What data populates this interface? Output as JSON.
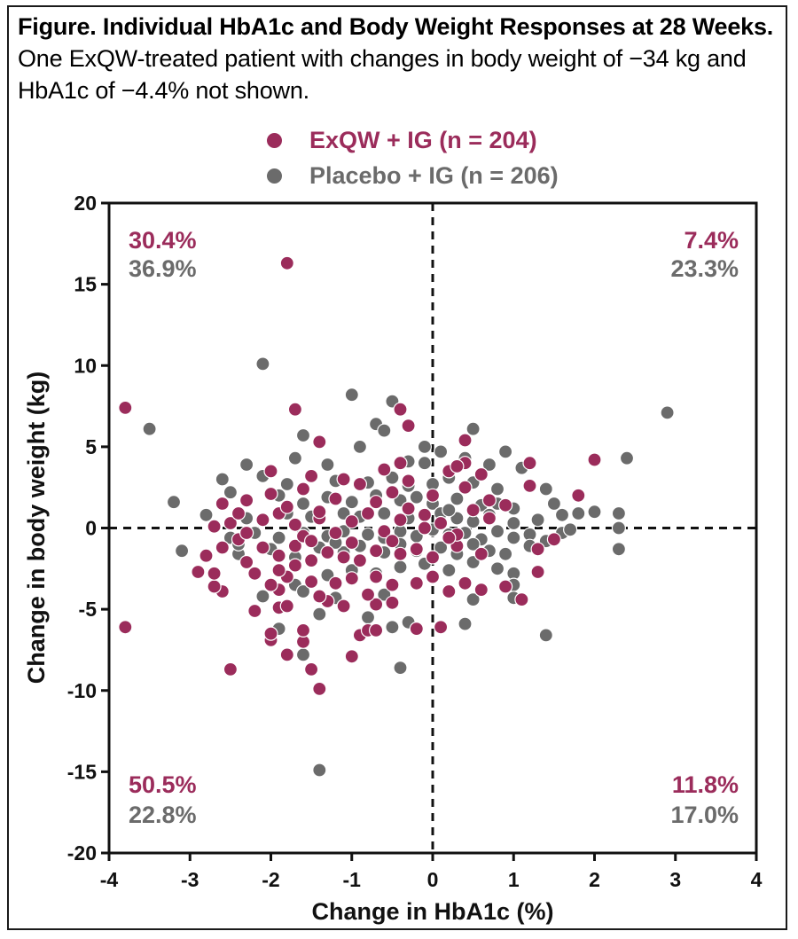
{
  "caption": {
    "title_bold": "Figure. Individual HbA1c and Body Weight Responses at 28 Weeks.",
    "title_rest": " One ExQW-treated patient with changes in body weight of −34 kg and HbA1c of −4.4% not shown."
  },
  "legend": [
    {
      "label": "ExQW + IG (n = 204)",
      "color": "#9b2c5b"
    },
    {
      "label": "Placebo + IG (n = 206)",
      "color": "#6b6b6b"
    }
  ],
  "quadrants": {
    "top_left": {
      "exqw": "30.4%",
      "placebo": "36.9%"
    },
    "top_right": {
      "exqw": "7.4%",
      "placebo": "23.3%"
    },
    "bottom_left": {
      "exqw": "50.5%",
      "placebo": "22.8%"
    },
    "bottom_right": {
      "exqw": "11.8%",
      "placebo": "17.0%"
    }
  },
  "chart_data": {
    "type": "scatter",
    "xlabel": "Change in HbA1c (%)",
    "ylabel": "Change in body weight (kg)",
    "xlim": [
      -4,
      4
    ],
    "ylim": [
      -20,
      20
    ],
    "xticks": [
      "-4",
      "-3",
      "-2",
      "-1",
      "0",
      "1",
      "2",
      "3",
      "4"
    ],
    "yticks": [
      "-20",
      "-15",
      "-10",
      "-5",
      "0",
      "5",
      "10",
      "15",
      "20"
    ],
    "reference_lines": {
      "x": 0,
      "y": 0
    },
    "series": [
      {
        "name": "ExQW + IG (n = 204)",
        "color": "#9b2c5b",
        "points": [
          [
            -1.8,
            16.3
          ],
          [
            -3.8,
            7.4
          ],
          [
            -1.7,
            7.3
          ],
          [
            -0.4,
            7.3
          ],
          [
            -3.8,
            -6.1
          ],
          [
            -2.5,
            -8.7
          ],
          [
            -1.5,
            -8.7
          ],
          [
            -1.4,
            -9.9
          ],
          [
            -1.0,
            -7.9
          ],
          [
            -0.9,
            -6.6
          ],
          [
            -0.8,
            -6.3
          ],
          [
            -0.7,
            -6.3
          ],
          [
            -0.2,
            -6.2
          ],
          [
            0.1,
            -6.1
          ],
          [
            -2.0,
            -6.9
          ],
          [
            -2.0,
            -6.5
          ],
          [
            -1.8,
            -7.8
          ],
          [
            -1.6,
            -7.0
          ],
          [
            -1.6,
            -6.3
          ],
          [
            -2.2,
            -5.1
          ],
          [
            -1.9,
            -4.9
          ],
          [
            -1.8,
            -4.8
          ],
          [
            -1.1,
            -4.8
          ],
          [
            -0.7,
            -4.7
          ],
          [
            -0.5,
            -4.6
          ],
          [
            -1.3,
            -4.5
          ],
          [
            -1.4,
            -4.2
          ],
          [
            0.2,
            -3.9
          ],
          [
            0.6,
            -3.8
          ],
          [
            0.9,
            -3.6
          ],
          [
            1.1,
            -4.4
          ],
          [
            -2.6,
            -3.9
          ],
          [
            -2.7,
            -3.6
          ],
          [
            -2.9,
            -2.7
          ],
          [
            -2.7,
            -2.8
          ],
          [
            -2.2,
            -2.8
          ],
          [
            -1.8,
            -3.0
          ],
          [
            -1.9,
            -3.8
          ],
          [
            -2.0,
            -3.5
          ],
          [
            -1.5,
            -3.3
          ],
          [
            -1.2,
            -3.4
          ],
          [
            -1.0,
            -3.1
          ],
          [
            -0.7,
            -3.0
          ],
          [
            -0.5,
            -3.5
          ],
          [
            -0.2,
            -3.4
          ],
          [
            0.0,
            -3.0
          ],
          [
            0.4,
            -3.4
          ],
          [
            1.3,
            -2.7
          ],
          [
            -2.8,
            -1.7
          ],
          [
            -2.6,
            -1.2
          ],
          [
            -2.4,
            -0.7
          ],
          [
            -2.1,
            -1.2
          ],
          [
            -1.9,
            -1.7
          ],
          [
            -1.7,
            -1.1
          ],
          [
            -1.5,
            -2.0
          ],
          [
            -1.3,
            -1.5
          ],
          [
            -1.1,
            -1.8
          ],
          [
            -0.9,
            -2.0
          ],
          [
            -0.7,
            -1.4
          ],
          [
            -0.4,
            -1.6
          ],
          [
            -0.2,
            -1.3
          ],
          [
            0.0,
            -1.8
          ],
          [
            0.3,
            -1.1
          ],
          [
            0.6,
            -1.6
          ],
          [
            1.3,
            -1.3
          ],
          [
            1.5,
            -0.7
          ],
          [
            -2.7,
            0.1
          ],
          [
            -2.5,
            0.3
          ],
          [
            -2.3,
            -0.3
          ],
          [
            -2.1,
            0.5
          ],
          [
            -1.9,
            0.9
          ],
          [
            -1.7,
            0.2
          ],
          [
            -1.6,
            -0.5
          ],
          [
            -1.4,
            0.6
          ],
          [
            -1.2,
            -0.3
          ],
          [
            -1.0,
            0.4
          ],
          [
            -0.8,
            0.9
          ],
          [
            -0.6,
            -0.2
          ],
          [
            -0.4,
            0.5
          ],
          [
            -0.3,
            1.2
          ],
          [
            -0.1,
            0.8
          ],
          [
            0.1,
            0.3
          ],
          [
            0.3,
            -0.4
          ],
          [
            0.5,
            1.1
          ],
          [
            0.7,
            0.6
          ],
          [
            0.9,
            1.4
          ],
          [
            -2.6,
            1.5
          ],
          [
            -2.3,
            1.7
          ],
          [
            -2.0,
            2.1
          ],
          [
            -1.8,
            1.3
          ],
          [
            -1.6,
            2.4
          ],
          [
            -1.4,
            1.0
          ],
          [
            -1.2,
            1.8
          ],
          [
            -0.9,
            2.7
          ],
          [
            -0.7,
            1.6
          ],
          [
            -0.5,
            2.2
          ],
          [
            -0.3,
            2.9
          ],
          [
            0.0,
            2.0
          ],
          [
            0.2,
            3.5
          ],
          [
            0.4,
            2.5
          ],
          [
            0.6,
            3.3
          ],
          [
            1.2,
            2.6
          ],
          [
            1.8,
            2.0
          ],
          [
            -2.0,
            3.5
          ],
          [
            -1.5,
            3.2
          ],
          [
            -1.1,
            3.0
          ],
          [
            -0.6,
            3.6
          ],
          [
            -0.4,
            4.0
          ],
          [
            0.4,
            4.0
          ],
          [
            0.4,
            5.4
          ],
          [
            1.2,
            4.0
          ],
          [
            2.0,
            4.2
          ],
          [
            -1.4,
            5.3
          ],
          [
            -0.3,
            6.3
          ],
          [
            0.3,
            3.8
          ],
          [
            0.7,
            1.7
          ],
          [
            -0.8,
            -4.1
          ],
          [
            -1.9,
            -2.6
          ],
          [
            -2.3,
            -2.1
          ],
          [
            -1.0,
            -0.9
          ],
          [
            -0.5,
            -0.8
          ],
          [
            -0.1,
            0.0
          ],
          [
            0.2,
            -0.6
          ],
          [
            -1.5,
            -0.8
          ],
          [
            -1.7,
            -2.3
          ],
          [
            -2.4,
            0.9
          ]
        ]
      },
      {
        "name": "Placebo + IG (n = 206)",
        "color": "#6b6b6b",
        "points": [
          [
            -2.1,
            10.1
          ],
          [
            -1.0,
            8.2
          ],
          [
            -0.5,
            7.8
          ],
          [
            2.9,
            7.1
          ],
          [
            -3.5,
            6.1
          ],
          [
            -0.7,
            6.4
          ],
          [
            -0.6,
            6.0
          ],
          [
            0.5,
            6.1
          ],
          [
            -1.6,
            5.7
          ],
          [
            -0.9,
            5.0
          ],
          [
            -0.1,
            5.0
          ],
          [
            0.9,
            4.7
          ],
          [
            2.4,
            4.3
          ],
          [
            -2.3,
            3.9
          ],
          [
            -1.7,
            4.3
          ],
          [
            -1.3,
            3.9
          ],
          [
            -0.3,
            4.1
          ],
          [
            -0.1,
            4.0
          ],
          [
            0.1,
            4.7
          ],
          [
            0.4,
            4.3
          ],
          [
            0.7,
            3.9
          ],
          [
            1.1,
            3.7
          ],
          [
            -2.6,
            3.0
          ],
          [
            -2.1,
            3.2
          ],
          [
            -1.8,
            2.7
          ],
          [
            -1.2,
            2.9
          ],
          [
            -0.8,
            2.8
          ],
          [
            -0.5,
            3.1
          ],
          [
            -0.3,
            2.6
          ],
          [
            0.0,
            2.7
          ],
          [
            0.2,
            3.1
          ],
          [
            0.5,
            2.8
          ],
          [
            0.8,
            2.4
          ],
          [
            1.4,
            2.4
          ],
          [
            -3.2,
            1.6
          ],
          [
            -2.5,
            2.2
          ],
          [
            -1.9,
            2.0
          ],
          [
            -1.6,
            1.5
          ],
          [
            -1.3,
            1.9
          ],
          [
            -1.0,
            1.6
          ],
          [
            -0.7,
            2.0
          ],
          [
            -0.4,
            1.7
          ],
          [
            -0.2,
            1.9
          ],
          [
            0.0,
            1.5
          ],
          [
            0.3,
            1.8
          ],
          [
            0.6,
            1.4
          ],
          [
            0.8,
            1.5
          ],
          [
            1.0,
            1.2
          ],
          [
            1.5,
            1.5
          ],
          [
            2.0,
            1.0
          ],
          [
            2.3,
            0.9
          ],
          [
            -2.8,
            0.8
          ],
          [
            -2.3,
            0.6
          ],
          [
            -1.8,
            0.9
          ],
          [
            -1.5,
            0.7
          ],
          [
            -1.1,
            0.9
          ],
          [
            -0.9,
            0.7
          ],
          [
            -0.6,
            0.9
          ],
          [
            -0.3,
            0.6
          ],
          [
            -0.1,
            0.8
          ],
          [
            0.1,
            0.9
          ],
          [
            0.3,
            0.6
          ],
          [
            0.5,
            0.4
          ],
          [
            0.7,
            0.8
          ],
          [
            1.0,
            0.3
          ],
          [
            1.3,
            0.5
          ],
          [
            1.6,
            0.8
          ],
          [
            1.8,
            0.9
          ],
          [
            2.3,
            0.0
          ],
          [
            -3.1,
            -1.4
          ],
          [
            -2.5,
            -0.6
          ],
          [
            -2.2,
            -0.3
          ],
          [
            -1.9,
            -0.6
          ],
          [
            -1.6,
            -0.3
          ],
          [
            -1.3,
            -0.5
          ],
          [
            -1.1,
            -0.2
          ],
          [
            -0.8,
            -0.4
          ],
          [
            -0.6,
            -0.6
          ],
          [
            -0.4,
            -0.2
          ],
          [
            -0.2,
            -0.5
          ],
          [
            0.0,
            -0.1
          ],
          [
            0.2,
            -0.4
          ],
          [
            0.4,
            -0.3
          ],
          [
            0.6,
            -0.7
          ],
          [
            0.8,
            -0.2
          ],
          [
            1.0,
            -0.6
          ],
          [
            1.2,
            -0.4
          ],
          [
            1.4,
            -0.8
          ],
          [
            1.6,
            -0.3
          ],
          [
            1.7,
            -0.1
          ],
          [
            2.3,
            -1.3
          ],
          [
            -2.4,
            -1.6
          ],
          [
            -2.0,
            -1.3
          ],
          [
            -1.7,
            -1.8
          ],
          [
            -1.4,
            -1.2
          ],
          [
            -1.1,
            -1.5
          ],
          [
            -0.9,
            -1.1
          ],
          [
            -0.6,
            -1.5
          ],
          [
            -0.4,
            -1.0
          ],
          [
            -0.2,
            -1.4
          ],
          [
            0.1,
            -1.2
          ],
          [
            0.3,
            -1.6
          ],
          [
            0.5,
            -1.0
          ],
          [
            0.7,
            -1.4
          ],
          [
            0.9,
            -1.6
          ],
          [
            1.2,
            -1.1
          ],
          [
            -1.7,
            -3.5
          ],
          [
            -1.3,
            -2.9
          ],
          [
            -1.0,
            -2.6
          ],
          [
            -0.7,
            -2.8
          ],
          [
            -0.4,
            -2.4
          ],
          [
            -0.1,
            -2.2
          ],
          [
            0.2,
            -2.6
          ],
          [
            0.5,
            -2.1
          ],
          [
            0.8,
            -2.5
          ],
          [
            1.0,
            -2.8
          ],
          [
            1.0,
            -3.5
          ],
          [
            -2.1,
            -4.2
          ],
          [
            -1.6,
            -3.9
          ],
          [
            -1.2,
            -4.3
          ],
          [
            -0.6,
            -4.1
          ],
          [
            0.5,
            -4.4
          ],
          [
            1.0,
            -4.3
          ],
          [
            -1.9,
            -4.9
          ],
          [
            -1.4,
            -5.3
          ],
          [
            -0.8,
            -5.5
          ],
          [
            0.4,
            -5.9
          ],
          [
            -0.3,
            -5.8
          ],
          [
            -0.5,
            -6.1
          ],
          [
            1.4,
            -6.6
          ],
          [
            -1.6,
            -7.8
          ],
          [
            -1.0,
            -7.9
          ],
          [
            -0.4,
            -8.6
          ],
          [
            -1.4,
            -14.9
          ],
          [
            -1.9,
            -6.2
          ],
          [
            -2.4,
            -1.0
          ],
          [
            -1.2,
            -0.9
          ],
          [
            0.2,
            1.1
          ]
        ]
      }
    ],
    "quadrant_percentages": {
      "top_left": {
        "ExQW + IG": 30.4,
        "Placebo + IG": 36.9
      },
      "top_right": {
        "ExQW + IG": 7.4,
        "Placebo + IG": 23.3
      },
      "bottom_left": {
        "ExQW + IG": 50.5,
        "Placebo + IG": 22.8
      },
      "bottom_right": {
        "ExQW + IG": 11.8,
        "Placebo + IG": 17.0
      }
    }
  }
}
